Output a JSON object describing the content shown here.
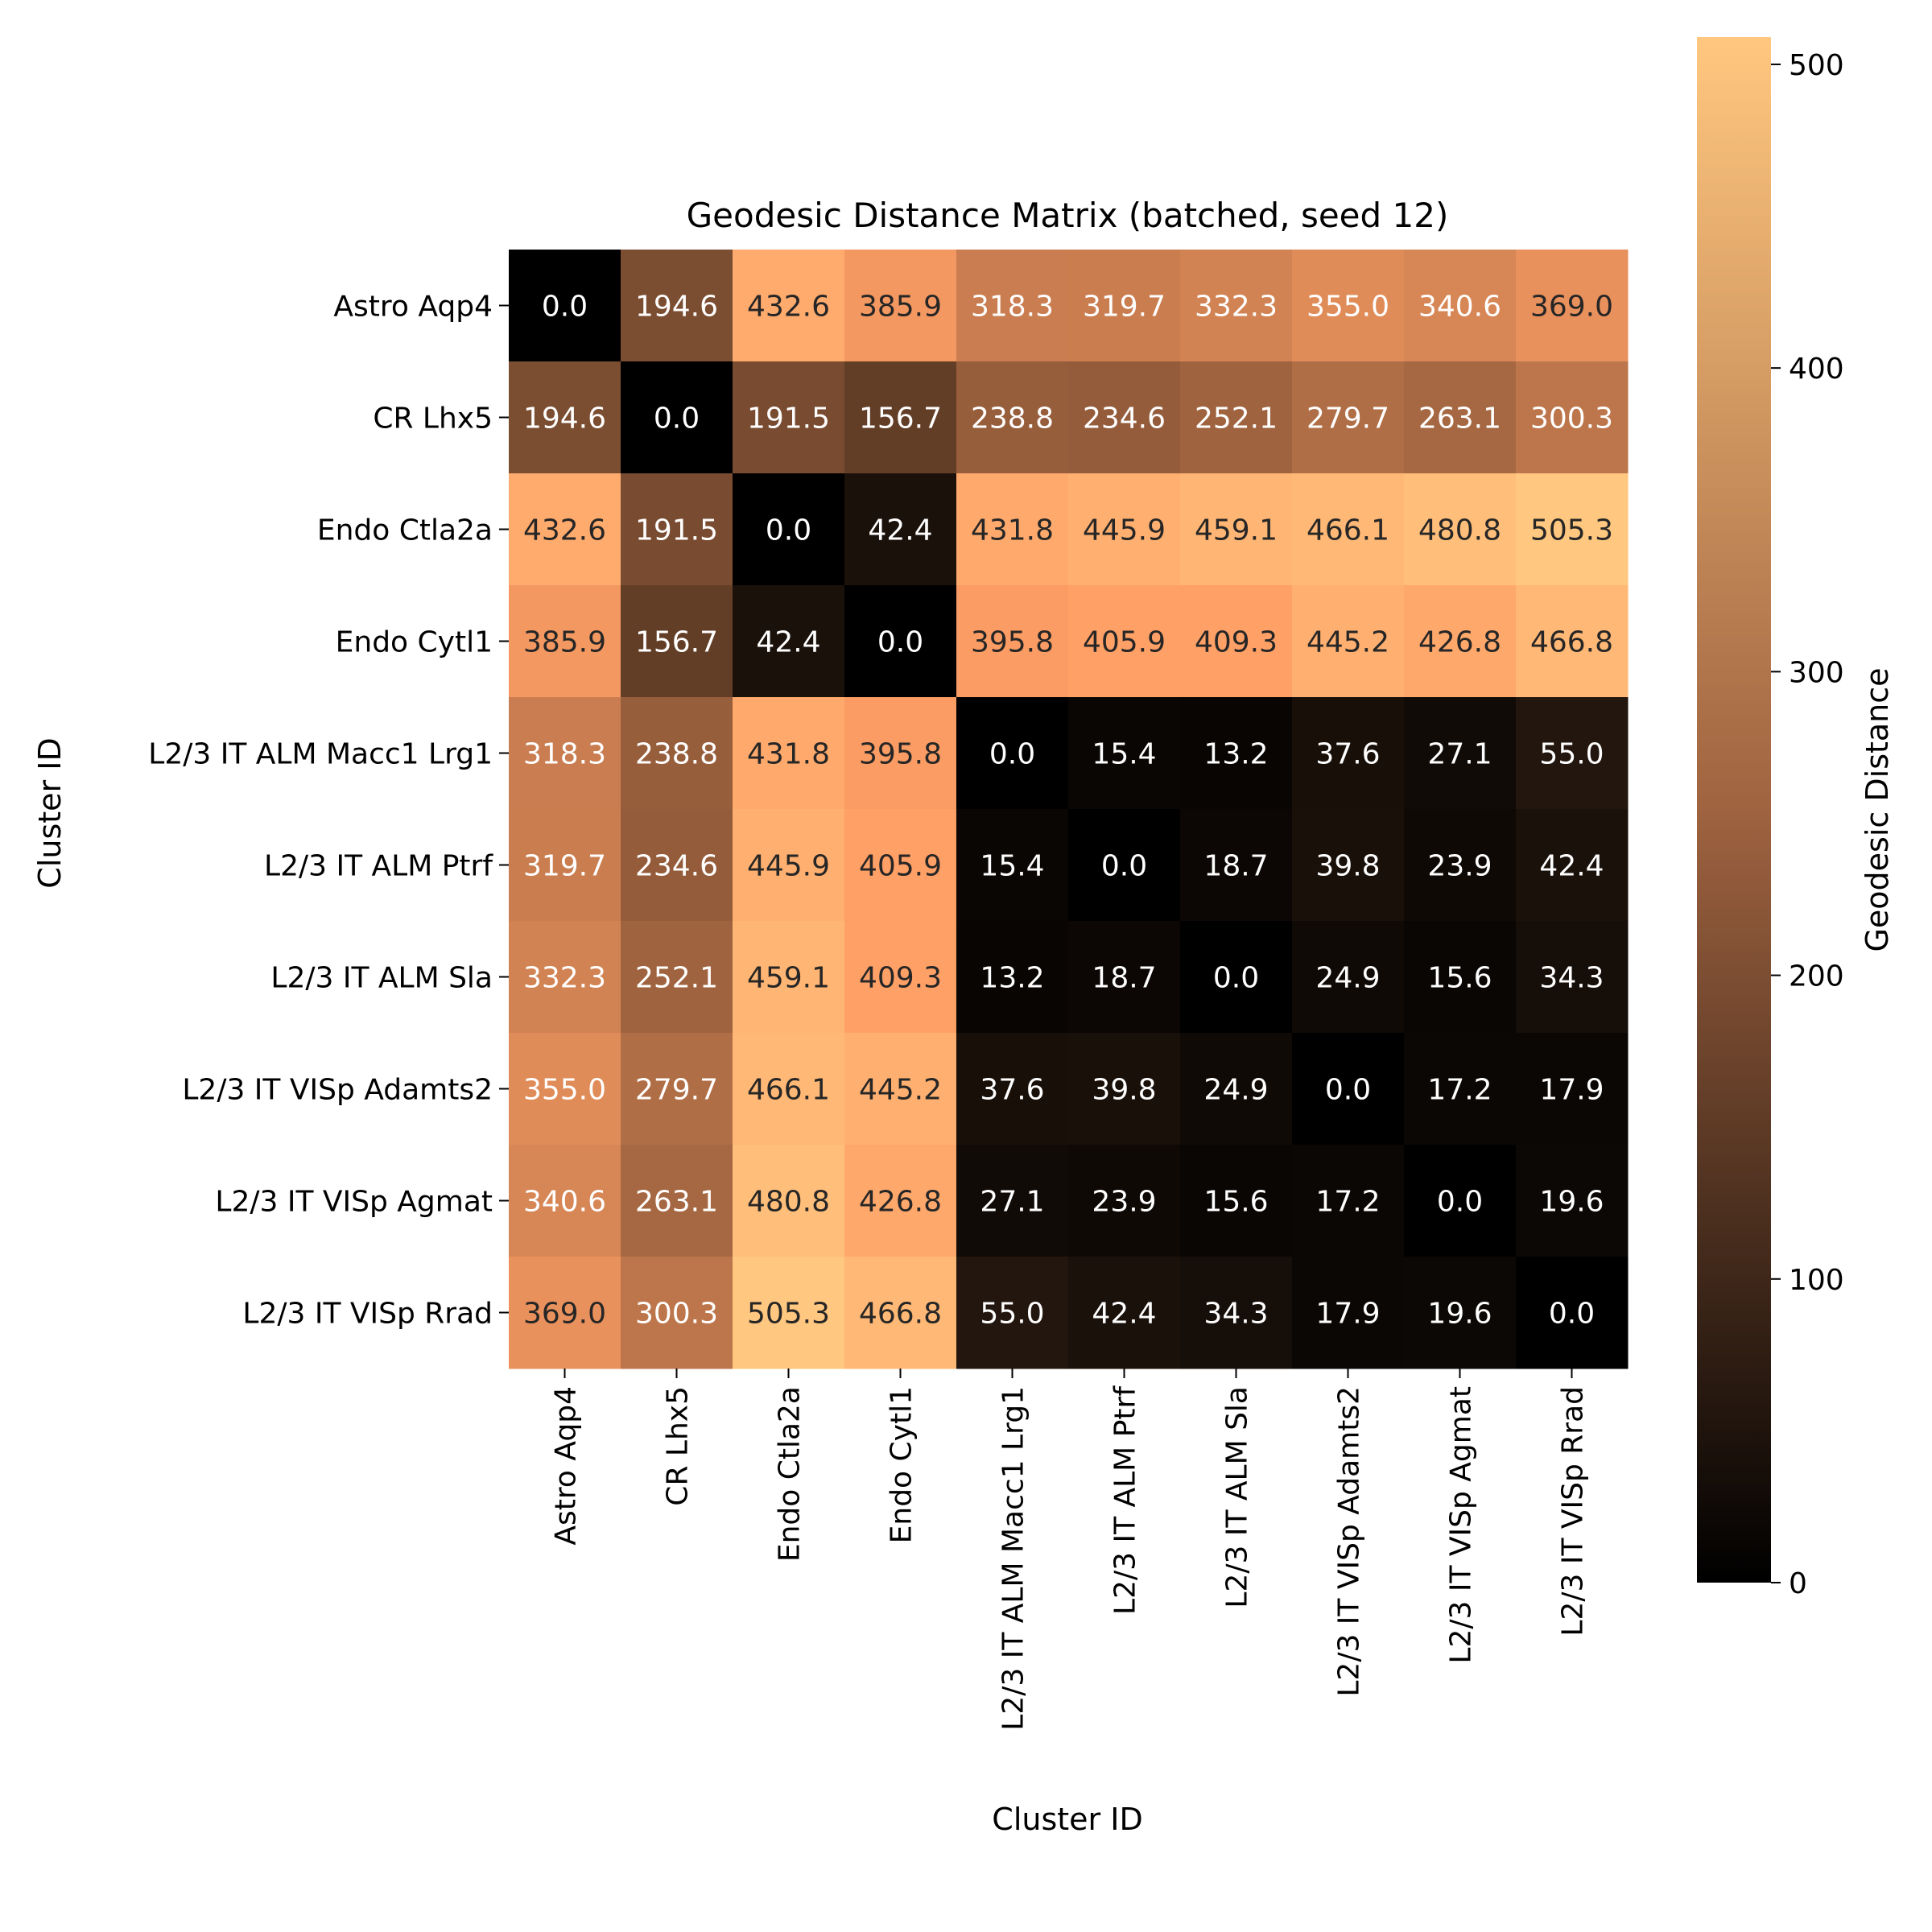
{
  "chart_data": {
    "type": "heatmap",
    "title": "Geodesic Distance Matrix (batched, seed 12)",
    "xlabel": "Cluster ID",
    "ylabel": "Cluster ID",
    "colorbar_label": "Geodesic Distance",
    "categories": [
      "Astro Aqp4",
      "CR Lhx5",
      "Endo Ctla2a",
      "Endo Cytl1",
      "L2/3 IT ALM Macc1 Lrg1",
      "L2/3 IT ALM Ptrf",
      "L2/3 IT ALM Sla",
      "L2/3 IT VISp Adamts2",
      "L2/3 IT VISp Agmat",
      "L2/3 IT VISp Rrad"
    ],
    "values": [
      [
        0.0,
        194.6,
        432.6,
        385.9,
        318.3,
        319.7,
        332.3,
        355.0,
        340.6,
        369.0
      ],
      [
        194.6,
        0.0,
        191.5,
        156.7,
        238.8,
        234.6,
        252.1,
        279.7,
        263.1,
        300.3
      ],
      [
        432.6,
        191.5,
        0.0,
        42.4,
        431.8,
        445.9,
        459.1,
        466.1,
        480.8,
        505.3
      ],
      [
        385.9,
        156.7,
        42.4,
        0.0,
        395.8,
        405.9,
        409.3,
        445.2,
        426.8,
        466.8
      ],
      [
        318.3,
        238.8,
        431.8,
        395.8,
        0.0,
        15.4,
        13.2,
        37.6,
        27.1,
        55.0
      ],
      [
        319.7,
        234.6,
        445.9,
        405.9,
        15.4,
        0.0,
        18.7,
        39.8,
        23.9,
        42.4
      ],
      [
        332.3,
        252.1,
        459.1,
        409.3,
        13.2,
        18.7,
        0.0,
        24.9,
        15.6,
        34.3
      ],
      [
        355.0,
        279.7,
        466.1,
        445.2,
        37.6,
        39.8,
        24.9,
        0.0,
        17.2,
        17.9
      ],
      [
        340.6,
        263.1,
        480.8,
        426.8,
        27.1,
        23.9,
        15.6,
        17.2,
        0.0,
        19.6
      ],
      [
        369.0,
        300.3,
        505.3,
        466.8,
        55.0,
        42.4,
        34.3,
        17.9,
        19.6,
        0.0
      ]
    ],
    "value_range": [
      0,
      505.3
    ],
    "colorbar_ticks": [
      0,
      100,
      200,
      300,
      400,
      500
    ],
    "colormap": "copper",
    "colors": {
      "low": "#000000",
      "high": "#FFC77F",
      "annotation_dark_text": "#262626",
      "annotation_light_text": "#ffffff"
    }
  }
}
